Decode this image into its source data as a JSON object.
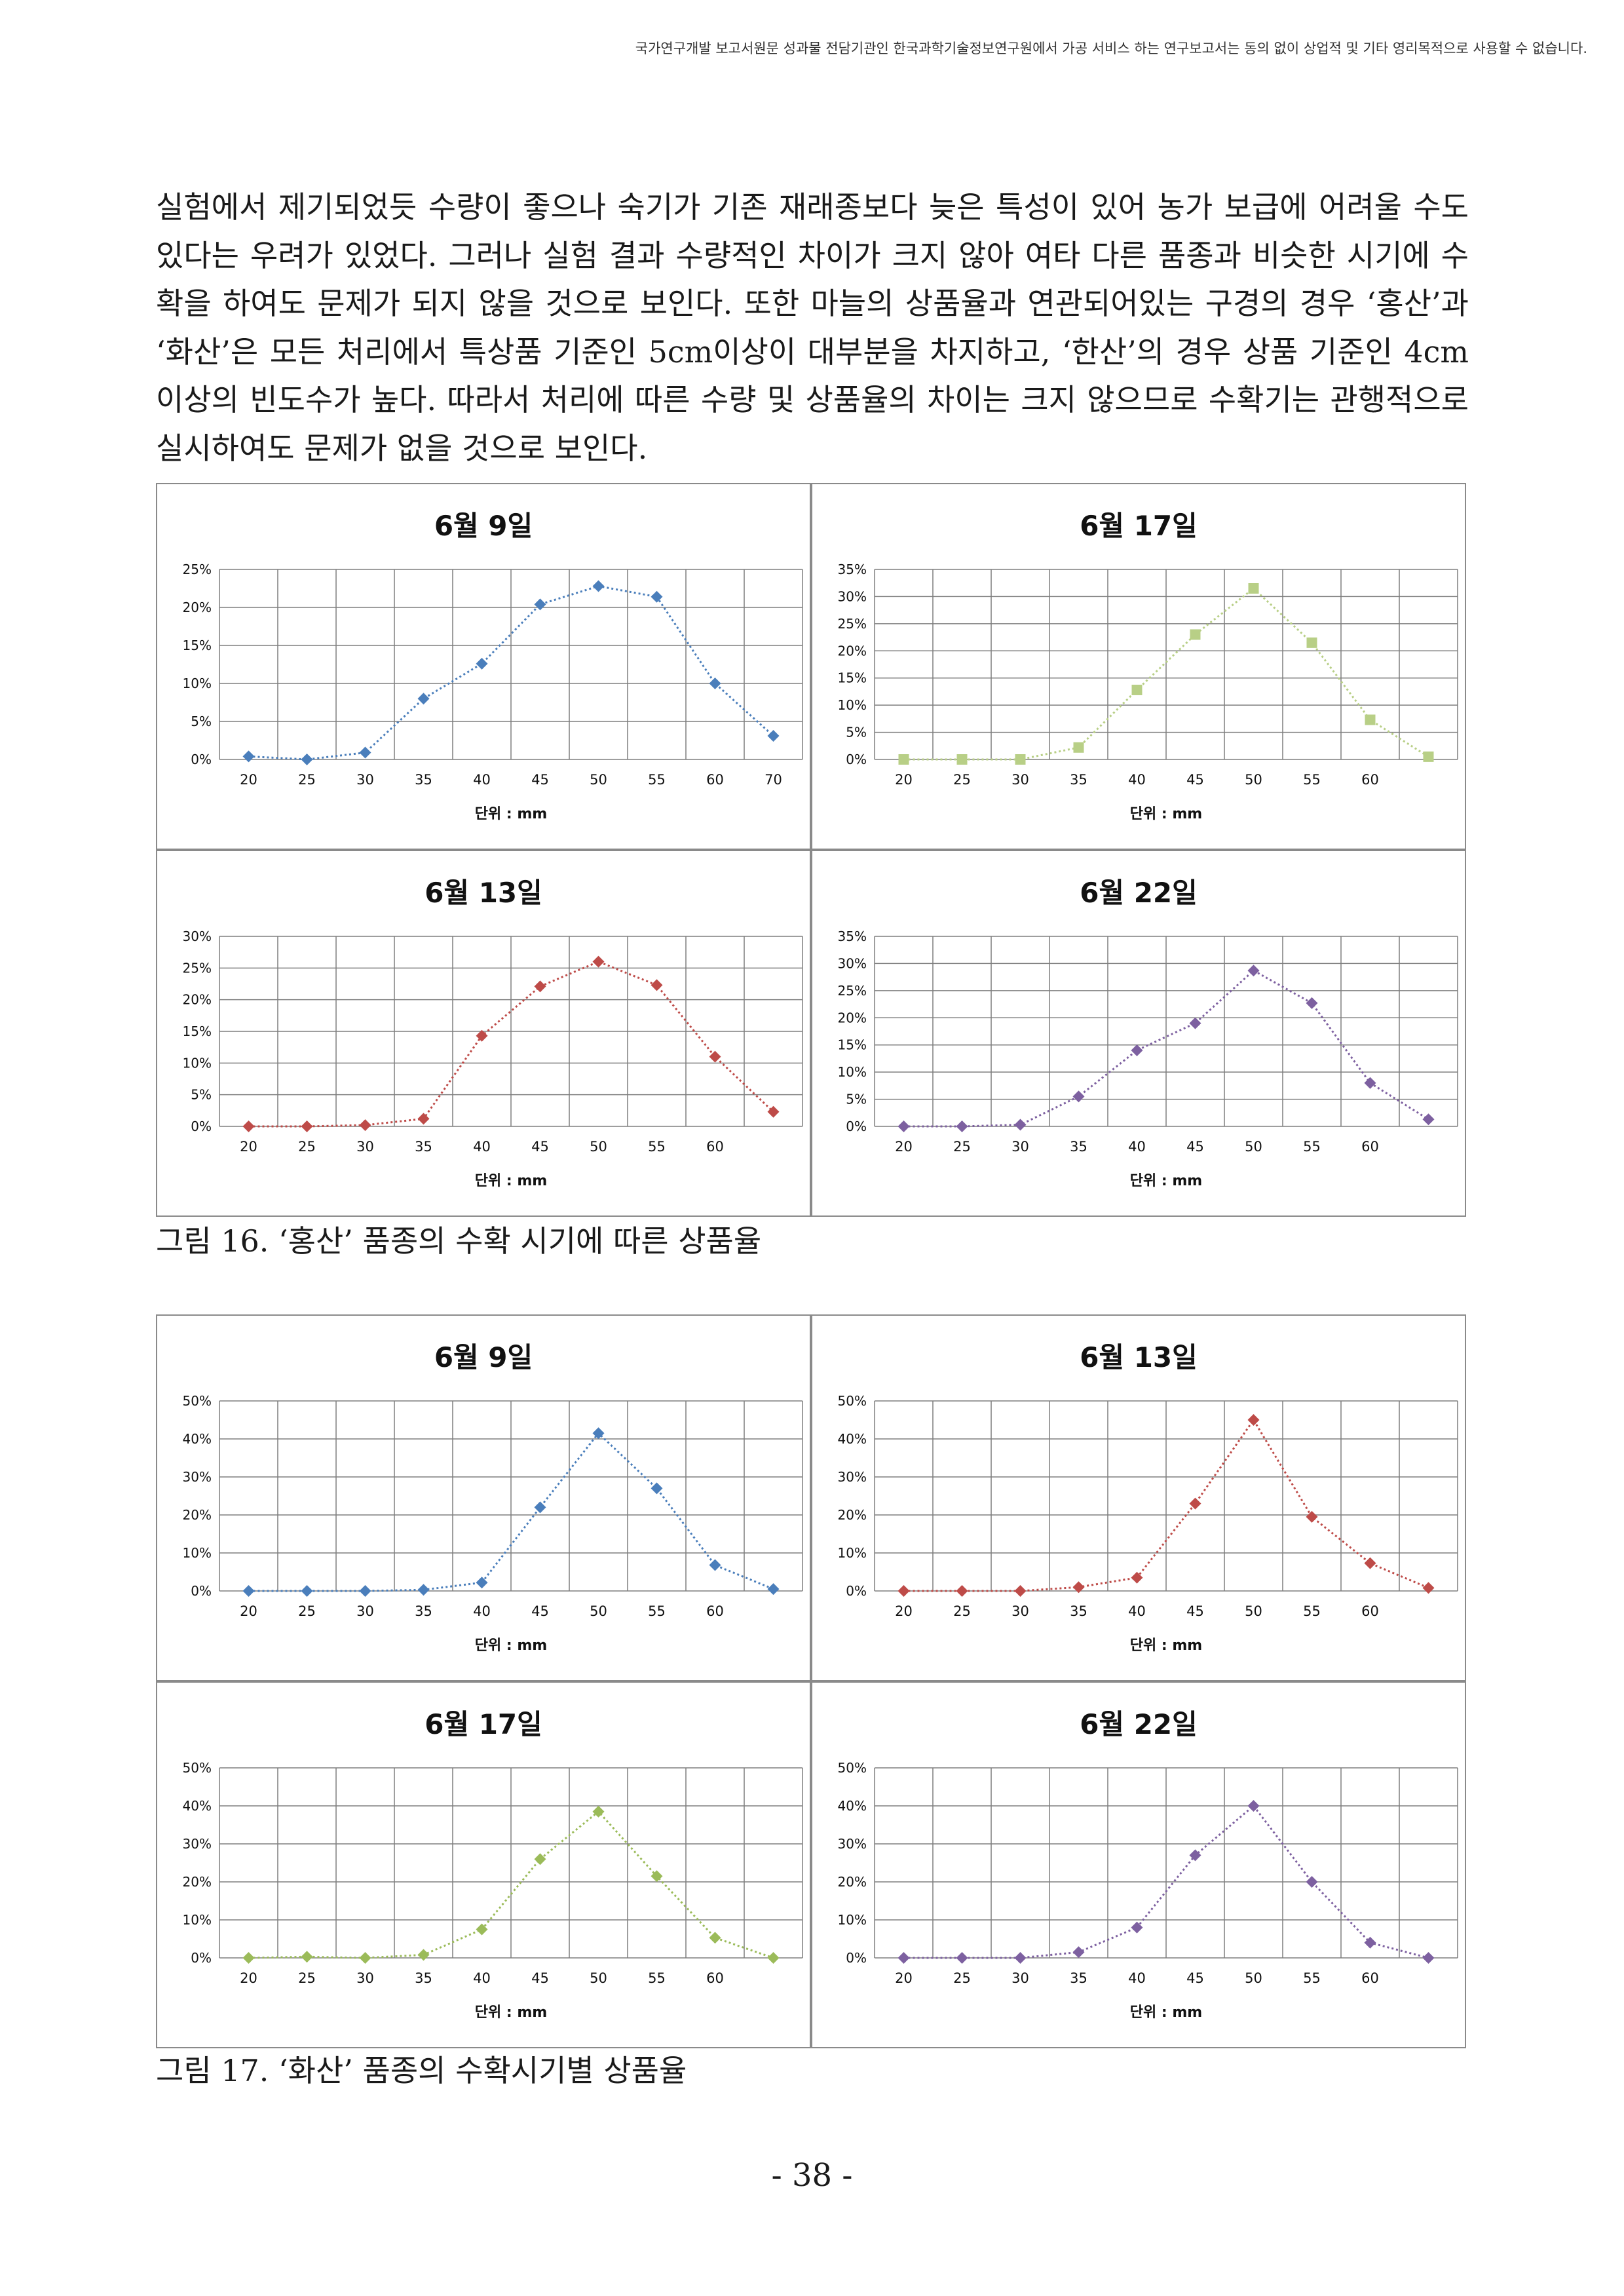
{
  "header_note": "국가연구개발 보고서원문 성과물 전담기관인 한국과학기술정보연구원에서 가공 서비스 하는 연구보고서는 동의 없이 상업적 및 기타 영리목적으로 사용할 수 없습니다.",
  "body_paragraph": "실험에서 제기되었듯 수량이 좋으나 숙기가 기존 재래종보다 늦은 특성이 있어 농가 보급에 어려울 수도 있다는 우려가 있었다. 그러나 실험 결과 수량적인 차이가 크지 않아 여타 다른 품종과 비슷한 시기에 수확을 하여도 문제가 되지 않을 것으로 보인다. 또한 마늘의 상품율과 연관되어있는 구경의 경우 ‘홍산’과 ‘화산’은 모든 처리에서 특상품 기준인 5cm이상이 대부분을 차지하고, ‘한산’의 경우 상품 기준인 4cm이상의 빈도수가 높다. 따라서 처리에 따른 수량 및 상품율의 차이는 크지 않으므로 수확기는 관행적으로 실시하여도 문제가 없을 것으로 보인다.",
  "figures": [
    {
      "caption": "그림 16. ‘홍산’ 품종의 수확 시기에 따른 상품율"
    },
    {
      "caption": "그림 17. ‘화산’ 품종의 수확시기별 상품율"
    }
  ],
  "page_number": "- 38 -",
  "chart_data": [
    {
      "type": "line",
      "title": "6월 9일",
      "xlabel": "단위 : mm",
      "ylabel": "",
      "x": [
        "20",
        "25",
        "30",
        "35",
        "40",
        "45",
        "50",
        "55",
        "60",
        "70"
      ],
      "ylim": [
        0,
        25
      ],
      "yticks": [
        0,
        5,
        10,
        15,
        20,
        25
      ],
      "grid": true,
      "marker": "diamond",
      "color": "#4a7ebb",
      "values": [
        0.4,
        0.0,
        0.9,
        8.0,
        12.6,
        20.4,
        22.8,
        21.4,
        10.0,
        3.1
      ]
    },
    {
      "type": "line",
      "title": "6월 17일",
      "xlabel": "단위 : mm",
      "ylabel": "",
      "x": [
        "20",
        "25",
        "30",
        "35",
        "40",
        "45",
        "50",
        "55",
        "60",
        ""
      ],
      "ylim": [
        0,
        35
      ],
      "yticks": [
        0,
        5,
        10,
        15,
        20,
        25,
        30,
        35
      ],
      "grid": true,
      "marker": "square",
      "color": "#b8cf86",
      "values": [
        0.0,
        0.0,
        0.0,
        2.2,
        12.8,
        23.0,
        31.5,
        21.5,
        7.3,
        0.5
      ]
    },
    {
      "type": "line",
      "title": "6월 13일",
      "xlabel": "단위 : mm",
      "ylabel": "",
      "x": [
        "20",
        "25",
        "30",
        "35",
        "40",
        "45",
        "50",
        "55",
        "60",
        ""
      ],
      "ylim": [
        0,
        30
      ],
      "yticks": [
        0,
        5,
        10,
        15,
        20,
        25,
        30
      ],
      "grid": true,
      "marker": "diamond",
      "color": "#be4b48",
      "values": [
        0.0,
        0.0,
        0.2,
        1.2,
        14.3,
        22.1,
        26.0,
        22.3,
        11.0,
        2.3
      ]
    },
    {
      "type": "line",
      "title": "6월 22일",
      "xlabel": "단위 : mm",
      "ylabel": "",
      "x": [
        "20",
        "25",
        "30",
        "35",
        "40",
        "45",
        "50",
        "55",
        "60",
        ""
      ],
      "ylim": [
        0,
        35
      ],
      "yticks": [
        0,
        5,
        10,
        15,
        20,
        25,
        30,
        35
      ],
      "grid": true,
      "marker": "diamond",
      "color": "#7d60a0",
      "values": [
        0.0,
        0.0,
        0.3,
        5.5,
        14.0,
        19.0,
        28.7,
        22.7,
        8.0,
        1.3
      ]
    },
    {
      "type": "line",
      "title": "6월 9일",
      "xlabel": "단위 : mm",
      "ylabel": "",
      "x": [
        "20",
        "25",
        "30",
        "35",
        "40",
        "45",
        "50",
        "55",
        "60",
        ""
      ],
      "ylim": [
        0,
        50
      ],
      "yticks": [
        0,
        10,
        20,
        30,
        40,
        50
      ],
      "grid": true,
      "marker": "diamond",
      "color": "#4a7ebb",
      "values": [
        0.0,
        0.0,
        0.0,
        0.3,
        2.2,
        22.0,
        41.5,
        27.0,
        6.8,
        0.5
      ]
    },
    {
      "type": "line",
      "title": "6월 13일",
      "xlabel": "단위 : mm",
      "ylabel": "",
      "x": [
        "20",
        "25",
        "30",
        "35",
        "40",
        "45",
        "50",
        "55",
        "60",
        ""
      ],
      "ylim": [
        0,
        50
      ],
      "yticks": [
        0,
        10,
        20,
        30,
        40,
        50
      ],
      "grid": true,
      "marker": "diamond",
      "color": "#be4b48",
      "values": [
        0.0,
        0.0,
        0.0,
        1.0,
        3.5,
        23.0,
        45.0,
        19.5,
        7.3,
        0.8
      ]
    },
    {
      "type": "line",
      "title": "6월 17일",
      "xlabel": "단위 : mm",
      "ylabel": "",
      "x": [
        "20",
        "25",
        "30",
        "35",
        "40",
        "45",
        "50",
        "55",
        "60",
        ""
      ],
      "ylim": [
        0,
        50
      ],
      "yticks": [
        0,
        10,
        20,
        30,
        40,
        50
      ],
      "grid": true,
      "marker": "diamond",
      "color": "#9bbb59",
      "values": [
        0.0,
        0.3,
        0.0,
        0.8,
        7.5,
        26.0,
        38.5,
        21.5,
        5.3,
        0.0
      ]
    },
    {
      "type": "line",
      "title": "6월 22일",
      "xlabel": "단위 : mm",
      "ylabel": "",
      "x": [
        "20",
        "25",
        "30",
        "35",
        "40",
        "45",
        "50",
        "55",
        "60",
        ""
      ],
      "ylim": [
        0,
        50
      ],
      "yticks": [
        0,
        10,
        20,
        30,
        40,
        50
      ],
      "grid": true,
      "marker": "diamond",
      "color": "#7d60a0",
      "values": [
        0.0,
        0.0,
        0.0,
        1.5,
        8.0,
        27.0,
        40.0,
        20.0,
        4.0,
        0.0
      ]
    }
  ]
}
